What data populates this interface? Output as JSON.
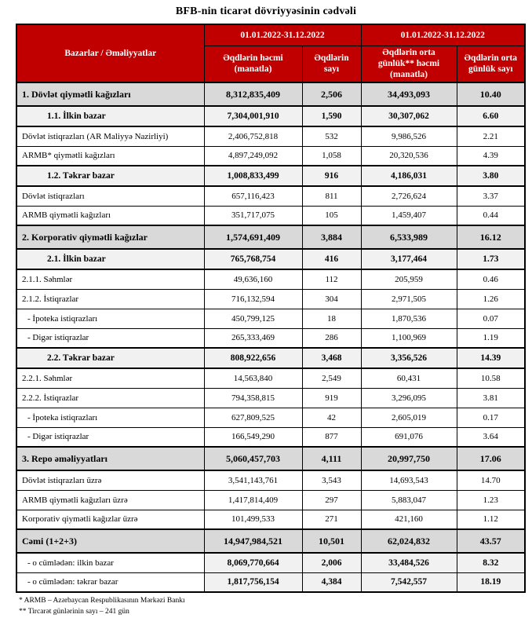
{
  "title": "BFB-nin ticarət dövriyyəsinin cədvəli",
  "colors": {
    "header_red": "#C00000",
    "section_row_bg": "#D9D9D9",
    "subsection_row_bg": "#F1F1F1",
    "header_text": "#FFFFFF",
    "border": "#000000"
  },
  "table": {
    "corner_header": "Bazarlar / Əməliyyatlar",
    "period_headers": [
      "01.01.2022-31.12.2022",
      "01.01.2022-31.12.2022"
    ],
    "col_headers": [
      "Əqdlərin həcmi (manatla)",
      "Əqdlərin sayı",
      "Əqdlərin orta günlük** həcmi (manatla)",
      "Əqdlərin orta günlük sayı"
    ],
    "rows": [
      {
        "label": "1. Dövlət qiymətli kağızları",
        "style": "section",
        "values": [
          "8,312,835,409",
          "2,506",
          "34,493,093",
          "10.40"
        ]
      },
      {
        "label": "1.1. İlkin bazar",
        "style": "subsection",
        "values": [
          "7,304,001,910",
          "1,590",
          "30,307,062",
          "6.60"
        ]
      },
      {
        "label": "Dövlət istiqrazları (AR Maliyyə Nazirliyi)",
        "style": "plain",
        "values": [
          "2,406,752,818",
          "532",
          "9,986,526",
          "2.21"
        ]
      },
      {
        "label": "ARMB* qiymətli kağızları",
        "style": "plain",
        "values": [
          "4,897,249,092",
          "1,058",
          "20,320,536",
          "4.39"
        ]
      },
      {
        "label": "1.2. Təkrar bazar",
        "style": "subsection",
        "values": [
          "1,008,833,499",
          "916",
          "4,186,031",
          "3.80"
        ]
      },
      {
        "label": "Dövlət istiqrazları",
        "style": "plain",
        "values": [
          "657,116,423",
          "811",
          "2,726,624",
          "3.37"
        ]
      },
      {
        "label": "ARMB qiymətli kağızları",
        "style": "plain",
        "values": [
          "351,717,075",
          "105",
          "1,459,407",
          "0.44"
        ]
      },
      {
        "label": "2. Korporativ qiymətli kağızlar",
        "style": "section",
        "values": [
          "1,574,691,409",
          "3,884",
          "6,533,989",
          "16.12"
        ]
      },
      {
        "label": "2.1. İlkin bazar",
        "style": "subsection",
        "values": [
          "765,768,754",
          "416",
          "3,177,464",
          "1.73"
        ]
      },
      {
        "label": "2.1.1. Səhmlər",
        "style": "plain",
        "values": [
          "49,636,160",
          "112",
          "205,959",
          "0.46"
        ]
      },
      {
        "label": "2.1.2. İstiqrazlar",
        "style": "plain",
        "values": [
          "716,132,594",
          "304",
          "2,971,505",
          "1.26"
        ]
      },
      {
        "label": "- İpoteka istiqrazları",
        "style": "plain-indent",
        "values": [
          "450,799,125",
          "18",
          "1,870,536",
          "0.07"
        ]
      },
      {
        "label": "- Digər istiqrazlar",
        "style": "plain-indent",
        "values": [
          "265,333,469",
          "286",
          "1,100,969",
          "1.19"
        ]
      },
      {
        "label": "2.2. Təkrar bazar",
        "style": "subsection",
        "values": [
          "808,922,656",
          "3,468",
          "3,356,526",
          "14.39"
        ]
      },
      {
        "label": "2.2.1. Səhmlər",
        "style": "plain",
        "values": [
          "14,563,840",
          "2,549",
          "60,431",
          "10.58"
        ]
      },
      {
        "label": "2.2.2. İstiqrazlar",
        "style": "plain",
        "values": [
          "794,358,815",
          "919",
          "3,296,095",
          "3.81"
        ]
      },
      {
        "label": "- İpoteka istiqrazları",
        "style": "plain-indent",
        "values": [
          "627,809,525",
          "42",
          "2,605,019",
          "0.17"
        ]
      },
      {
        "label": "- Digər istiqrazlar",
        "style": "plain-indent",
        "values": [
          "166,549,290",
          "877",
          "691,076",
          "3.64"
        ]
      },
      {
        "label": "3. Repo əməliyyatları",
        "style": "section",
        "values": [
          "5,060,457,703",
          "4,111",
          "20,997,750",
          "17.06"
        ]
      },
      {
        "label": "Dövlət istiqrazları üzrə",
        "style": "plain",
        "values": [
          "3,541,143,761",
          "3,543",
          "14,693,543",
          "14.70"
        ]
      },
      {
        "label": "ARMB qiymətli kağızları üzrə",
        "style": "plain",
        "values": [
          "1,417,814,409",
          "297",
          "5,883,047",
          "1.23"
        ]
      },
      {
        "label": "Korporativ qiymətli kağızlar üzrə",
        "style": "plain",
        "values": [
          "101,499,533",
          "271",
          "421,160",
          "1.12"
        ]
      },
      {
        "label": "Cəmi (1+2+3)",
        "style": "section",
        "values": [
          "14,947,984,521",
          "10,501",
          "62,024,832",
          "43.57"
        ]
      },
      {
        "label": "- o cümlədən: ilkin bazar",
        "style": "total-sub",
        "values": [
          "8,069,770,664",
          "2,006",
          "33,484,526",
          "8.32"
        ]
      },
      {
        "label": "- o cümlədən: təkrar bazar",
        "style": "total-sub",
        "values": [
          "1,817,756,154",
          "4,384",
          "7,542,557",
          "18.19"
        ]
      }
    ],
    "footnotes": [
      "* ARMB – Azərbaycan Respublikasının Mərkəzi Bankı",
      "** Tircarət günlərinin sayı – 241  gün"
    ]
  }
}
